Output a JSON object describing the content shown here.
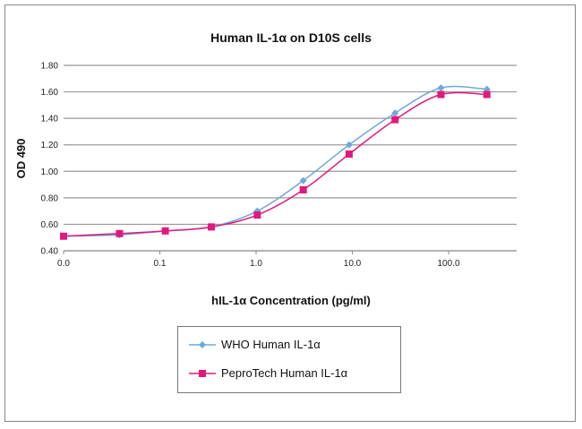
{
  "chart_data": {
    "type": "line",
    "title": "Human IL-1α on D10S cells",
    "xlabel": "hIL-1α Concentration (pg/ml)",
    "ylabel": "OD 490",
    "x_scale": "log",
    "xlim": [
      0.01,
      500
    ],
    "ylim": [
      0.4,
      1.8
    ],
    "x_ticks": [
      {
        "value": 0.01,
        "label": "0.0"
      },
      {
        "value": 0.1,
        "label": "0.1"
      },
      {
        "value": 1,
        "label": "1.0"
      },
      {
        "value": 10,
        "label": "10.0"
      },
      {
        "value": 100,
        "label": "100.0"
      }
    ],
    "y_ticks": [
      "0.40",
      "0.60",
      "0.80",
      "1.00",
      "1.20",
      "1.40",
      "1.60",
      "1.80"
    ],
    "grid": "horizontal",
    "legend_placement": "bottom",
    "x": [
      0.01,
      0.0381,
      0.114,
      0.343,
      1.03,
      3.09,
      9.26,
      27.8,
      83.3,
      250
    ],
    "series": [
      {
        "name": "WHO Human IL-1α",
        "color": "#6fa8d6",
        "marker": "diamond",
        "values": [
          0.51,
          0.52,
          0.55,
          0.58,
          0.7,
          0.93,
          1.2,
          1.44,
          1.63,
          1.62
        ]
      },
      {
        "name": "PeproTech Human IL-1α",
        "color": "#e0197d",
        "marker": "square",
        "values": [
          0.51,
          0.53,
          0.55,
          0.58,
          0.67,
          0.86,
          1.13,
          1.39,
          1.58,
          1.58
        ]
      }
    ]
  }
}
